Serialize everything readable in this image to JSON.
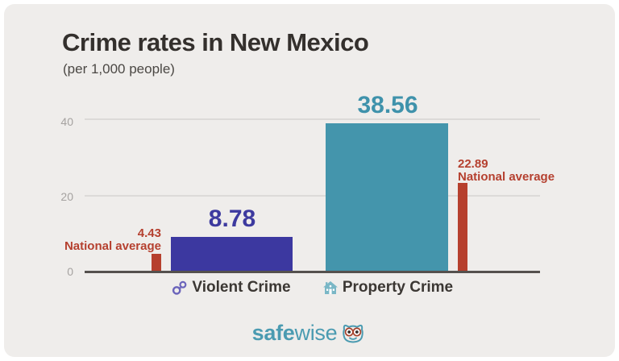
{
  "header": {
    "title": "Crime rates in New Mexico",
    "subtitle": "(per 1,000 people)"
  },
  "chart_data": {
    "type": "bar",
    "title": "Crime rates in New Mexico",
    "subtitle": "(per 1,000 people)",
    "unit": "per 1,000 people",
    "categories": [
      "Violent Crime",
      "Property Crime"
    ],
    "series": [
      {
        "name": "New Mexico",
        "values": [
          8.78,
          38.56
        ]
      },
      {
        "name": "National average",
        "values": [
          4.43,
          22.89
        ]
      }
    ],
    "yticks": [
      "0",
      "20",
      "40"
    ],
    "ylim": [
      0,
      42
    ],
    "grid": true,
    "legend_position": "none",
    "bar_colors": [
      "#3c38a0",
      "#4495ac"
    ],
    "national_average_color": "#b5402f"
  },
  "yaxis": {
    "tick40": "40",
    "tick20": "20",
    "tick0": "0"
  },
  "violent": {
    "value": "8.78",
    "category": "Violent Crime",
    "natl_value": "4.43",
    "natl_caption": "National average"
  },
  "property": {
    "value": "38.56",
    "category": "Property Crime",
    "natl_value": "22.89",
    "natl_caption": "National average"
  },
  "footer": {
    "brand_bold": "safe",
    "brand_regular": "wise"
  }
}
